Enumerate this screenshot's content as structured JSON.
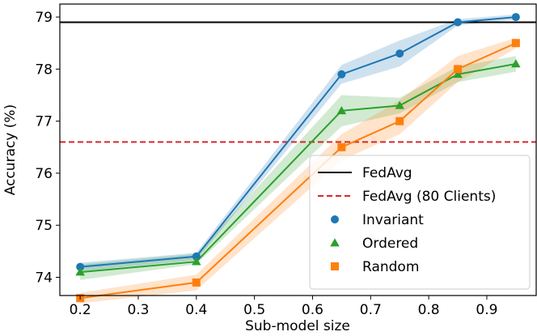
{
  "chart_data": {
    "type": "line",
    "title": "",
    "xlabel": "Sub-model size",
    "ylabel": "Accuracy (%)",
    "xlim": [
      0.165,
      0.985
    ],
    "ylim": [
      73.65,
      79.25
    ],
    "xticks": [
      0.2,
      0.3,
      0.4,
      0.5,
      0.6,
      0.7,
      0.8,
      0.9
    ],
    "xtick_labels": [
      "0.2",
      "0.3",
      "0.4",
      "0.5",
      "0.6",
      "0.7",
      "0.8",
      "0.9"
    ],
    "yticks": [
      74,
      75,
      76,
      77,
      78,
      79
    ],
    "ytick_labels": [
      "74",
      "75",
      "76",
      "77",
      "78",
      "79"
    ],
    "grid": false,
    "legend_position": "lower-right",
    "hlines": [
      {
        "name": "FedAvg",
        "y": 78.9,
        "color": "#000000",
        "style": "solid"
      },
      {
        "name": "FedAvg (80 Clients)",
        "y": 76.6,
        "color": "#d62728",
        "style": "dashed"
      }
    ],
    "series": [
      {
        "name": "Invariant",
        "marker": "circle",
        "color": "#1f77b4",
        "x": [
          0.2,
          0.4,
          0.65,
          0.75,
          0.85,
          0.95
        ],
        "y": [
          74.2,
          74.4,
          77.9,
          78.3,
          78.9,
          79.0
        ],
        "lower": [
          74.12,
          74.33,
          77.72,
          78.05,
          78.84,
          78.95
        ],
        "upper": [
          74.28,
          74.47,
          78.08,
          78.55,
          78.96,
          79.05
        ]
      },
      {
        "name": "Ordered",
        "marker": "triangle",
        "color": "#2ca02c",
        "x": [
          0.2,
          0.4,
          0.65,
          0.75,
          0.85,
          0.95
        ],
        "y": [
          74.1,
          74.3,
          77.2,
          77.3,
          77.9,
          78.1
        ],
        "lower": [
          73.95,
          74.25,
          76.9,
          77.15,
          77.75,
          77.95
        ],
        "upper": [
          74.25,
          74.45,
          77.5,
          77.45,
          78.05,
          78.25
        ]
      },
      {
        "name": "Random",
        "marker": "square",
        "color": "#ff7f0e",
        "x": [
          0.2,
          0.4,
          0.65,
          0.75,
          0.85,
          0.95
        ],
        "y": [
          73.6,
          73.9,
          76.5,
          77.0,
          78.0,
          78.5
        ],
        "lower": [
          73.5,
          73.75,
          76.25,
          76.75,
          77.75,
          78.4
        ],
        "upper": [
          73.7,
          74.05,
          76.75,
          77.4,
          78.25,
          78.6
        ]
      }
    ]
  }
}
